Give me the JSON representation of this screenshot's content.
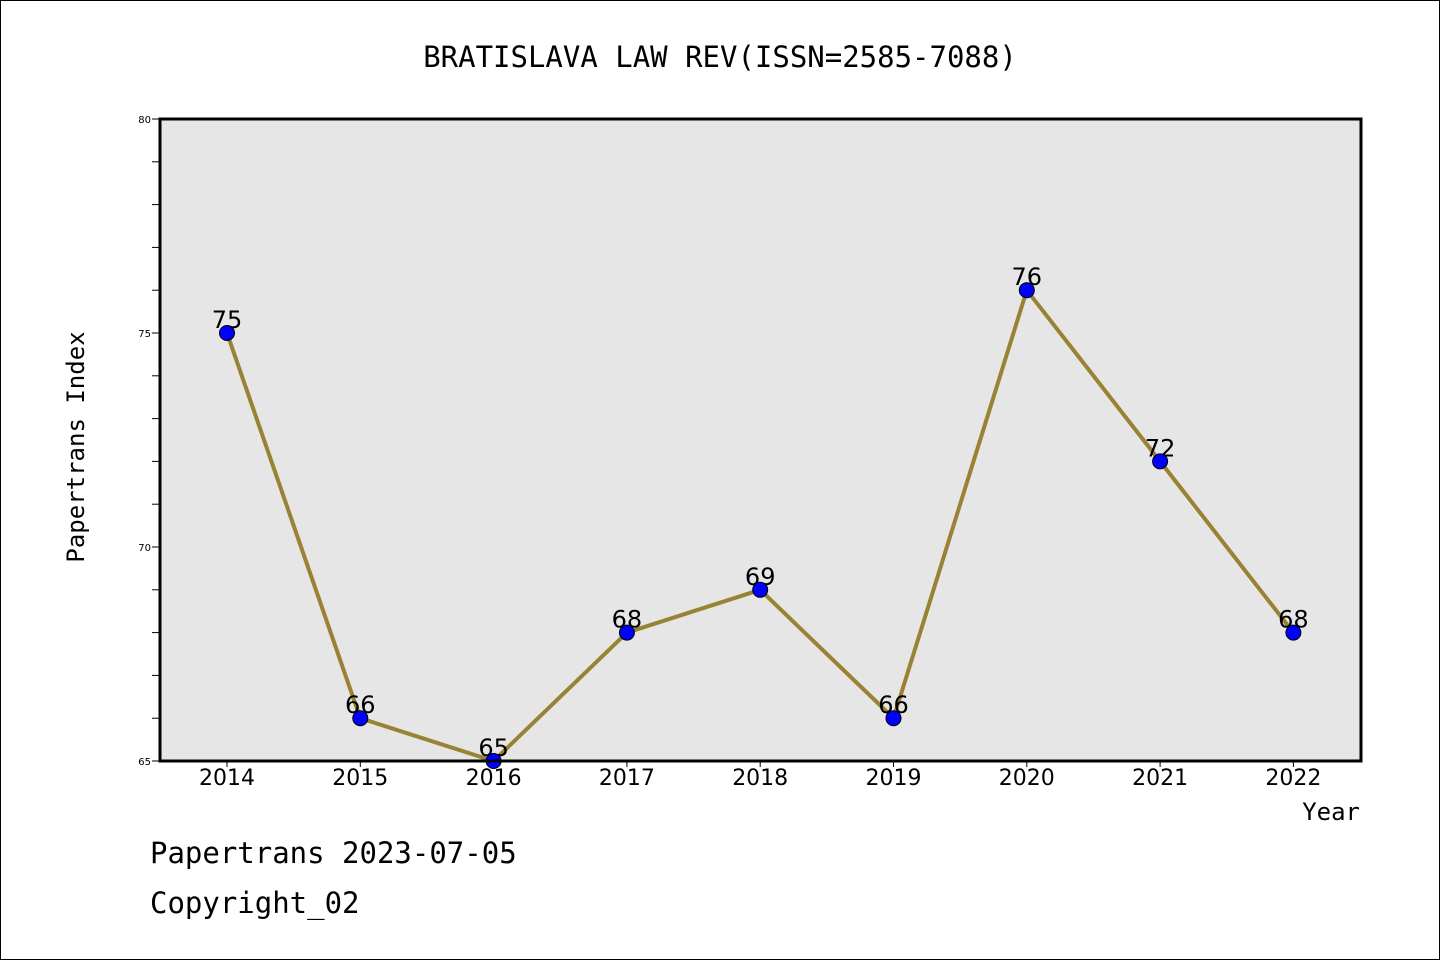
{
  "chart_data": {
    "type": "line",
    "title": "BRATISLAVA LAW REV(ISSN=2585-7088)",
    "xlabel": "Year",
    "ylabel": "Papertrans Index",
    "categories": [
      "2014",
      "2015",
      "2016",
      "2017",
      "2018",
      "2019",
      "2020",
      "2021",
      "2022"
    ],
    "series": [
      {
        "name": "Papertrans Index",
        "values": [
          75,
          66,
          65,
          68,
          69,
          66,
          76,
          72,
          68
        ]
      }
    ],
    "ylim": [
      65,
      80
    ],
    "yticks": [
      65,
      70,
      75,
      80
    ],
    "line_color": "#9a8234",
    "marker_color": "#0000ff",
    "plot_background": "#e6e6e6",
    "grid": false
  },
  "footer": {
    "date_line": "Papertrans 2023-07-05",
    "copyright": "Copyright_02"
  }
}
